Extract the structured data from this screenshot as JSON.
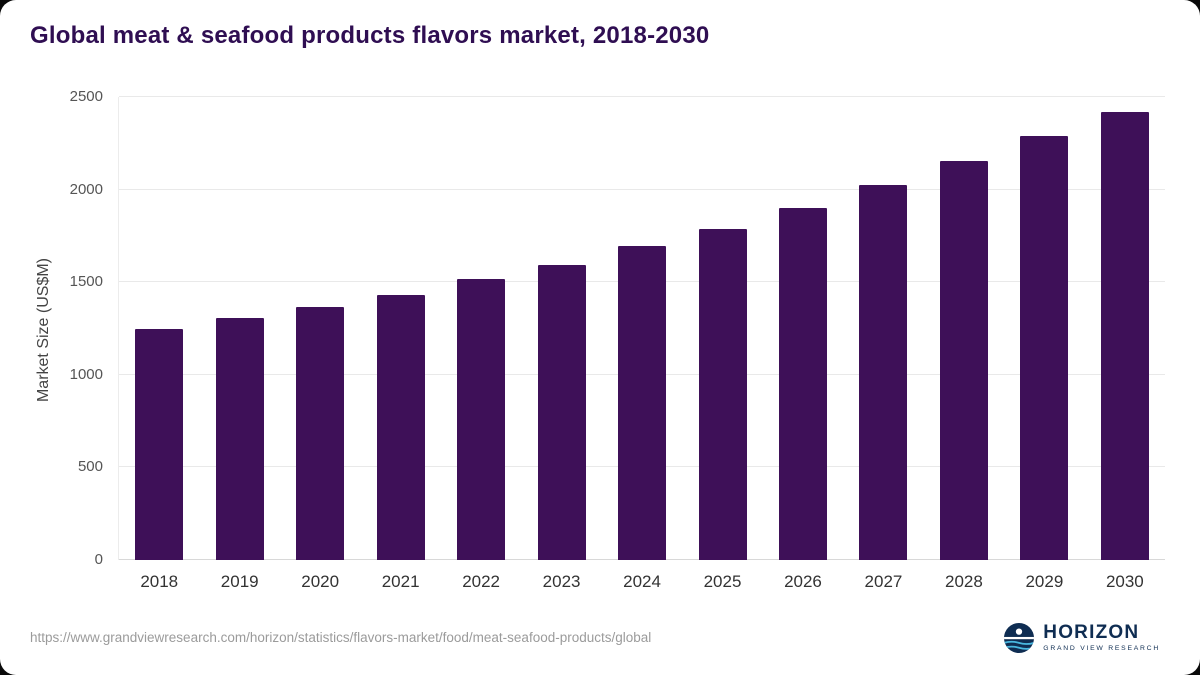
{
  "title": "Global meat & seafood products flavors market, 2018-2030",
  "chart_data": {
    "type": "bar",
    "title": "Global meat & seafood products flavors market, 2018-2030",
    "categories": [
      "2018",
      "2019",
      "2020",
      "2021",
      "2022",
      "2023",
      "2024",
      "2025",
      "2026",
      "2027",
      "2028",
      "2029",
      "2030"
    ],
    "values": [
      1250,
      1305,
      1365,
      1430,
      1515,
      1595,
      1695,
      1790,
      1900,
      2025,
      2155,
      2290,
      2420
    ],
    "xlabel": "",
    "ylabel": "Market Size (US$M)",
    "ylim": [
      0,
      2500
    ],
    "yticks": [
      0,
      500,
      1000,
      1500,
      2000,
      2500
    ],
    "grid": true,
    "legend": "none",
    "bar_color": "#3e1058"
  },
  "footer": {
    "source_url": "https://www.grandviewresearch.com/horizon/statistics/flavors-market/food/meat-seafood-products/global",
    "logo_title": "HORIZON",
    "logo_subtitle": "GRAND VIEW RESEARCH"
  },
  "colors": {
    "bar": "#3e1058",
    "title": "#2f0e52",
    "logo_navy": "#0f2d52",
    "logo_teal": "#49b8e0"
  }
}
